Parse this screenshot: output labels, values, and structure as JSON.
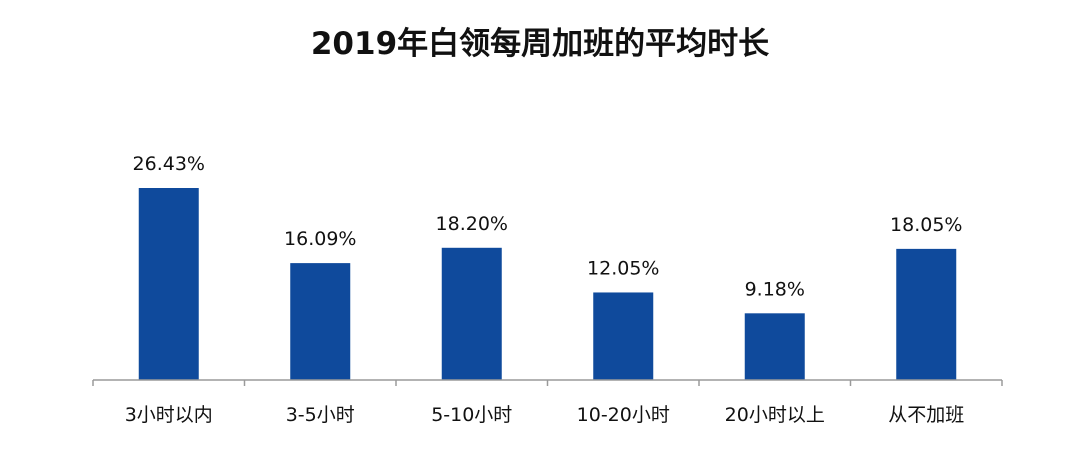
{
  "chart_data": {
    "type": "bar",
    "title": "2019年白领每周加班的平均时长",
    "xlabel": "",
    "ylabel": "",
    "categories": [
      "3小时以内",
      "3-5小时",
      "5-10小时",
      "10-20小时",
      "20小时以上",
      "从不加班"
    ],
    "values": [
      26.43,
      16.09,
      18.2,
      12.05,
      9.18,
      18.05
    ],
    "data_labels": [
      "26.43%",
      "16.09%",
      "18.20%",
      "12.05%",
      "9.18%",
      "18.05%"
    ],
    "ylim": [
      0,
      30
    ],
    "grid": false,
    "legend": "none",
    "bar_color": "#0F4A9C",
    "axis_color": "#9a9a9a"
  }
}
